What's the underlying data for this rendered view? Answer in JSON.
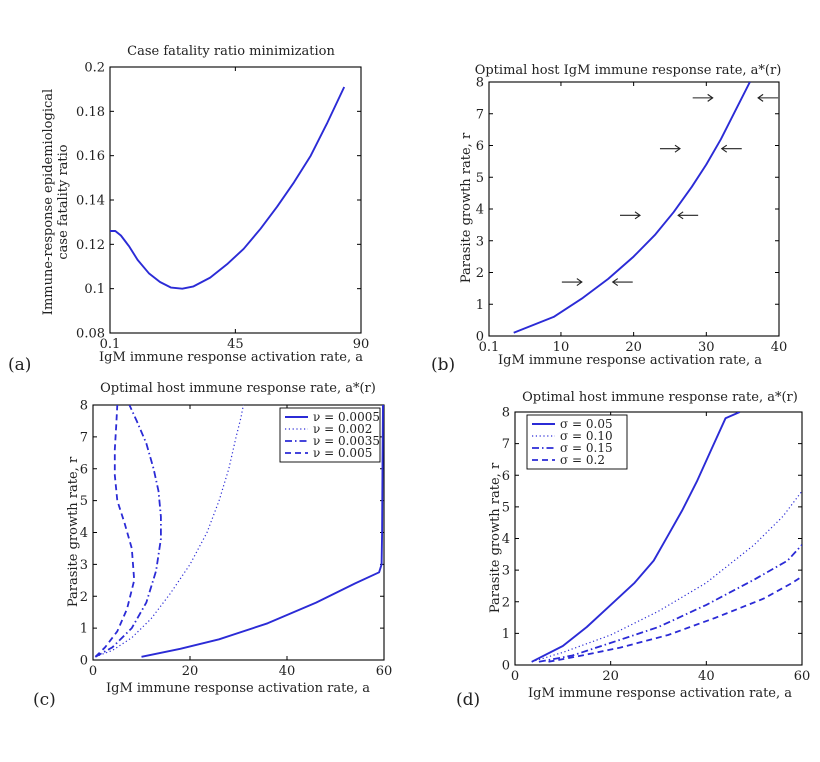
{
  "panels": {
    "a": {
      "label": "(a)"
    },
    "b": {
      "label": "(b)"
    },
    "c": {
      "label": "(c)"
    },
    "d": {
      "label": "(d)"
    }
  },
  "chart_data": [
    {
      "id": "a",
      "type": "line",
      "title": "Case fatality ratio minimization",
      "xlabel": "IgM immune response activation rate, a",
      "ylabel_lines": [
        "Immune-response epidemiological",
        "case fatality ratio"
      ],
      "xlim": [
        0.1,
        90
      ],
      "ylim": [
        0.08,
        0.2
      ],
      "xticks": [
        0.1,
        45,
        90
      ],
      "xtick_labels": [
        "0.1",
        "45",
        "90"
      ],
      "yticks": [
        0.08,
        0.1,
        0.12,
        0.14,
        0.16,
        0.18,
        0.2
      ],
      "ytick_labels": [
        "0.08",
        "0.1",
        "0.12",
        "0.14",
        "0.16",
        "0.18",
        "0.2"
      ],
      "series": [
        {
          "style": "solid",
          "x": [
            0.1,
            2,
            4,
            7,
            10,
            14,
            18,
            22,
            26,
            30,
            36,
            42,
            48,
            54,
            60,
            66,
            72,
            78,
            84
          ],
          "y": [
            0.126,
            0.126,
            0.124,
            0.119,
            0.113,
            0.107,
            0.103,
            0.1005,
            0.1,
            0.101,
            0.105,
            0.111,
            0.118,
            0.127,
            0.137,
            0.148,
            0.16,
            0.175,
            0.191
          ]
        }
      ]
    },
    {
      "id": "b",
      "type": "line",
      "title": "Optimal host IgM immune response rate, a*(r)",
      "xlabel": "IgM immune response activation rate, a",
      "ylabel": "Parasite growth rate, r",
      "xlim": [
        0.1,
        40
      ],
      "ylim": [
        0,
        8
      ],
      "xticks": [
        0.1,
        10,
        20,
        30,
        40
      ],
      "xtick_labels": [
        "0.1",
        "10",
        "20",
        "30",
        "40"
      ],
      "yticks": [
        0,
        1,
        2,
        3,
        4,
        5,
        6,
        7,
        8
      ],
      "ytick_labels": [
        "0",
        "1",
        "2",
        "3",
        "4",
        "5",
        "6",
        "7",
        "8"
      ],
      "series": [
        {
          "style": "solid",
          "x": [
            3.5,
            9,
            13,
            16.5,
            20,
            23,
            25.5,
            28,
            30,
            32,
            34,
            36
          ],
          "y": [
            0.1,
            0.6,
            1.2,
            1.8,
            2.5,
            3.2,
            3.9,
            4.7,
            5.4,
            6.2,
            7.1,
            8
          ]
        }
      ],
      "arrows": [
        {
          "x": 11.5,
          "y": 1.7,
          "dir": "right"
        },
        {
          "x": 18.5,
          "y": 1.7,
          "dir": "left"
        },
        {
          "x": 19.5,
          "y": 3.8,
          "dir": "right"
        },
        {
          "x": 27.5,
          "y": 3.8,
          "dir": "left"
        },
        {
          "x": 25,
          "y": 5.9,
          "dir": "right"
        },
        {
          "x": 33.5,
          "y": 5.9,
          "dir": "left"
        },
        {
          "x": 29.5,
          "y": 7.5,
          "dir": "right"
        },
        {
          "x": 38.5,
          "y": 7.5,
          "dir": "left"
        }
      ]
    },
    {
      "id": "c",
      "type": "line",
      "title": "Optimal host immune response rate, a*(r)",
      "xlabel": "IgM immune response activation rate, a",
      "ylabel": "Parasite growth rate, r",
      "xlim": [
        0,
        60
      ],
      "ylim": [
        0,
        8
      ],
      "xticks": [
        0,
        20,
        40,
        60
      ],
      "xtick_labels": [
        "0",
        "20",
        "40",
        "60"
      ],
      "yticks": [
        0,
        1,
        2,
        3,
        4,
        5,
        6,
        7,
        8
      ],
      "ytick_labels": [
        "0",
        "1",
        "2",
        "3",
        "4",
        "5",
        "6",
        "7",
        "8"
      ],
      "legend": "top-right",
      "series": [
        {
          "name": "ν = 0.0005",
          "style": "solid",
          "x": [
            10,
            18,
            26,
            36,
            46,
            54,
            59,
            59.5,
            59.6,
            59.7,
            59.8
          ],
          "y": [
            0.1,
            0.35,
            0.65,
            1.15,
            1.8,
            2.4,
            2.75,
            3.0,
            4.0,
            6.0,
            8.0
          ]
        },
        {
          "name": "ν = 0.002",
          "style": "dotted",
          "x": [
            0.5,
            4,
            8,
            12,
            16,
            20,
            23.5,
            26,
            28,
            29.5,
            30.5,
            31
          ],
          "y": [
            0.1,
            0.3,
            0.7,
            1.3,
            2.1,
            3.0,
            4.0,
            5.0,
            6.0,
            7.0,
            7.6,
            8.0
          ]
        },
        {
          "name": "ν = 0.0035",
          "style": "dashdot",
          "x": [
            0.5,
            4,
            8,
            11,
            13,
            14,
            14,
            13.5,
            12.5,
            11,
            9,
            7.5
          ],
          "y": [
            0.1,
            0.4,
            1.0,
            1.8,
            2.8,
            3.8,
            4.5,
            5.3,
            6.0,
            6.8,
            7.5,
            8.0
          ]
        },
        {
          "name": "ν = 0.005",
          "style": "dashed",
          "x": [
            0.5,
            2.5,
            5,
            7,
            8.5,
            8,
            6.5,
            5,
            4.5,
            4.5,
            4.8,
            5
          ],
          "y": [
            0.1,
            0.4,
            0.9,
            1.6,
            2.5,
            3.5,
            4.3,
            5.0,
            5.8,
            6.6,
            7.4,
            8.0
          ]
        }
      ]
    },
    {
      "id": "d",
      "type": "line",
      "title": "Optimal host immune response rate, a*(r)",
      "xlabel": "IgM immune response activation rate, a",
      "ylabel": "Parasite growth rate, r",
      "xlim": [
        0,
        60
      ],
      "ylim": [
        0,
        8
      ],
      "xticks": [
        0,
        20,
        40,
        60
      ],
      "xtick_labels": [
        "0",
        "20",
        "40",
        "60"
      ],
      "yticks": [
        0,
        1,
        2,
        3,
        4,
        5,
        6,
        7,
        8
      ],
      "ytick_labels": [
        "0",
        "1",
        "2",
        "3",
        "4",
        "5",
        "6",
        "7",
        "8"
      ],
      "legend": "top-left",
      "series": [
        {
          "name": "σ = 0.05",
          "style": "solid",
          "x": [
            3.5,
            10,
            15,
            20,
            25,
            29,
            32,
            35,
            38,
            41,
            44,
            47
          ],
          "y": [
            0.1,
            0.6,
            1.2,
            1.9,
            2.6,
            3.3,
            4.1,
            4.9,
            5.8,
            6.8,
            7.8,
            8.0
          ]
        },
        {
          "name": "σ = 0.10",
          "style": "dotted",
          "x": [
            3.5,
            10,
            20,
            30,
            40,
            50,
            56,
            60
          ],
          "y": [
            0.1,
            0.4,
            0.95,
            1.7,
            2.6,
            3.8,
            4.7,
            5.5
          ]
        },
        {
          "name": "σ = 0.15",
          "style": "dashdot",
          "x": [
            5,
            12,
            20,
            30,
            40,
            50,
            57,
            60
          ],
          "y": [
            0.1,
            0.3,
            0.7,
            1.2,
            1.9,
            2.7,
            3.3,
            3.8
          ]
        },
        {
          "name": "σ = 0.2",
          "style": "dashed",
          "x": [
            7,
            14,
            22,
            32,
            42,
            52,
            58,
            60
          ],
          "y": [
            0.1,
            0.3,
            0.55,
            0.95,
            1.5,
            2.1,
            2.6,
            2.8
          ]
        }
      ]
    }
  ]
}
